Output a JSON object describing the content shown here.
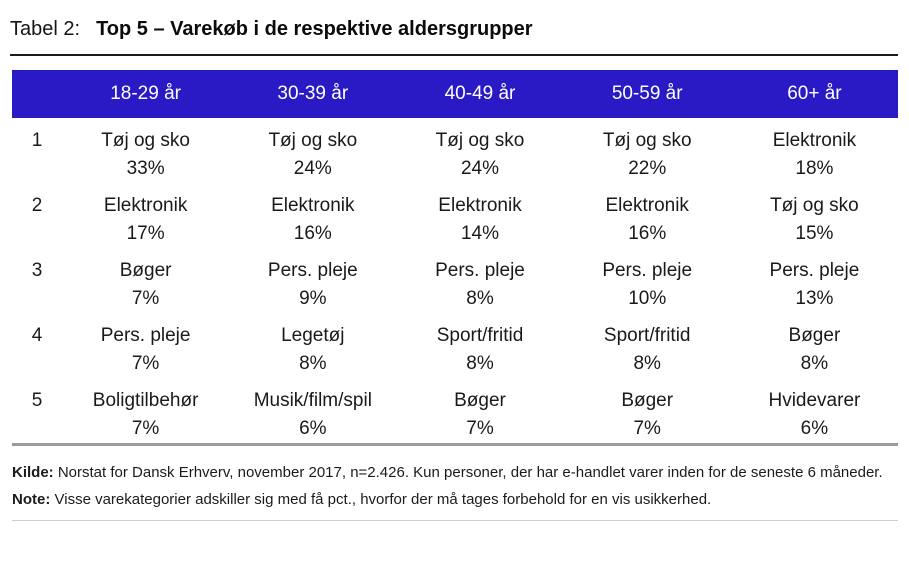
{
  "title": {
    "prefix": "Tabel 2:",
    "text": "Top 5 – Varekøb i de respektive aldersgrupper"
  },
  "table": {
    "columns": [
      "18-29 år",
      "30-39 år",
      "40-49 år",
      "50-59 år",
      "60+ år"
    ],
    "rows": [
      {
        "rank": "1",
        "cells": [
          {
            "category": "Tøj og sko",
            "pct": "33%"
          },
          {
            "category": "Tøj og sko",
            "pct": "24%"
          },
          {
            "category": "Tøj og sko",
            "pct": "24%"
          },
          {
            "category": "Tøj og sko",
            "pct": "22%"
          },
          {
            "category": "Elektronik",
            "pct": "18%"
          }
        ]
      },
      {
        "rank": "2",
        "cells": [
          {
            "category": "Elektronik",
            "pct": "17%"
          },
          {
            "category": "Elektronik",
            "pct": "16%"
          },
          {
            "category": "Elektronik",
            "pct": "14%"
          },
          {
            "category": "Elektronik",
            "pct": "16%"
          },
          {
            "category": "Tøj og sko",
            "pct": "15%"
          }
        ]
      },
      {
        "rank": "3",
        "cells": [
          {
            "category": "Bøger",
            "pct": "7%"
          },
          {
            "category": "Pers. pleje",
            "pct": "9%"
          },
          {
            "category": "Pers. pleje",
            "pct": "8%"
          },
          {
            "category": "Pers. pleje",
            "pct": "10%"
          },
          {
            "category": "Pers. pleje",
            "pct": "13%"
          }
        ]
      },
      {
        "rank": "4",
        "cells": [
          {
            "category": "Pers. pleje",
            "pct": "7%"
          },
          {
            "category": "Legetøj",
            "pct": "8%"
          },
          {
            "category": "Sport/fritid",
            "pct": "8%"
          },
          {
            "category": "Sport/fritid",
            "pct": "8%"
          },
          {
            "category": "Bøger",
            "pct": "8%"
          }
        ]
      },
      {
        "rank": "5",
        "cells": [
          {
            "category": "Boligtilbehør",
            "pct": "7%"
          },
          {
            "category": "Musik/film/spil",
            "pct": "6%"
          },
          {
            "category": "Bøger",
            "pct": "7%"
          },
          {
            "category": "Bøger",
            "pct": "7%"
          },
          {
            "category": "Hvidevarer",
            "pct": "6%"
          }
        ]
      }
    ]
  },
  "footer": {
    "kilde_label": "Kilde:",
    "kilde_text": "Norstat for Dansk Erhverv, november 2017, n=2.426. Kun personer, der har e-handlet varer inden for de seneste 6 måneder.",
    "note_label": "Note:",
    "note_text": "Visse varekategorier adskiller sig med få pct., hvorfor der må tages forbehold for en vis usikkerhed."
  },
  "colors": {
    "header_bg": "#2a1ac6",
    "header_text": "#ffffff",
    "title_rule": "#1c1c1c",
    "table_bottom_rule": "#9b9b9b",
    "bottom_rule": "#cfcfcf"
  }
}
